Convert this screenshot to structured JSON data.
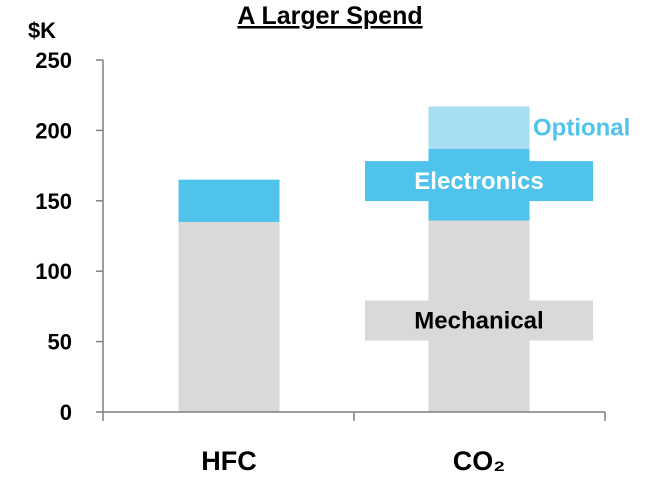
{
  "chart_data": {
    "type": "bar",
    "title": "A Larger Spend",
    "ylabel": "$K",
    "ylim": [
      0,
      250
    ],
    "yticks": [
      "0",
      "50",
      "100",
      "150",
      "200",
      "250"
    ],
    "categories": [
      "HFC",
      "CO₂"
    ],
    "stacked": true,
    "grid": false,
    "legend": "none",
    "series": [
      {
        "name": "Mechanical",
        "values": [
          135,
          136
        ],
        "color": "#d9d9d9"
      },
      {
        "name": "Electronics",
        "values": [
          30,
          51
        ],
        "color": "#4fc3ec"
      },
      {
        "name": "Optional",
        "values": [
          0,
          30
        ],
        "color": "#a8def2"
      }
    ],
    "annotations": [
      {
        "text": "Mechanical",
        "category": "CO₂",
        "value": 65,
        "band_color": "#d9d9d9",
        "text_color": "#000000"
      },
      {
        "text": "Electronics",
        "category": "CO₂",
        "value": 164,
        "band_color": "#4fc3ec",
        "text_color": "#ffffff"
      },
      {
        "text": "Optional",
        "category": "CO₂",
        "value": 202,
        "band_color": "",
        "text_color": "#4fc3ec"
      }
    ]
  }
}
